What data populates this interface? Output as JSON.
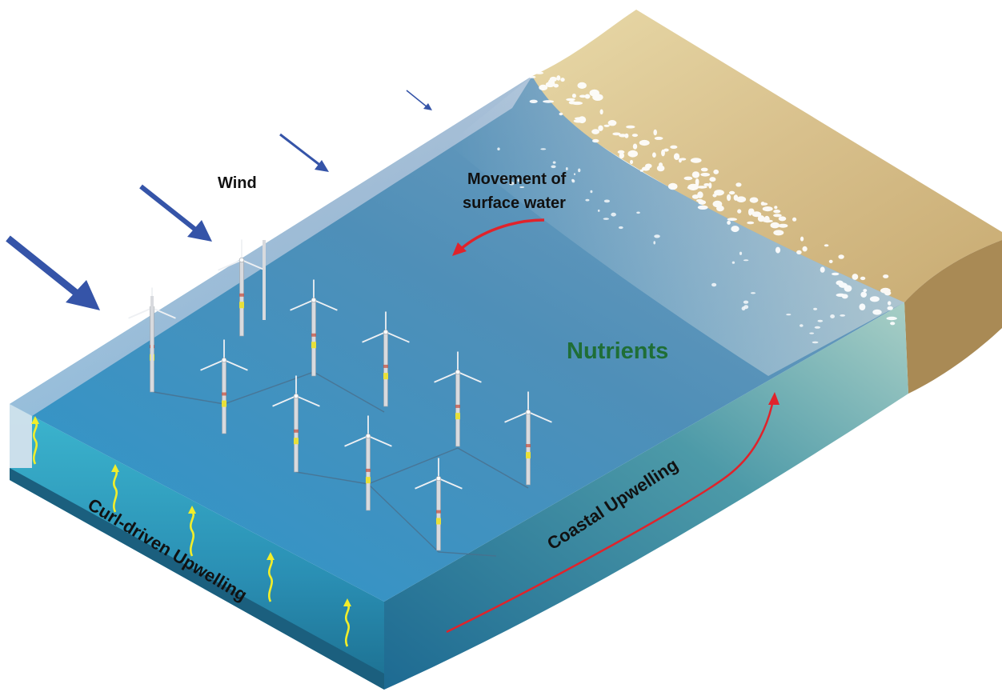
{
  "labels": {
    "wind": "Wind",
    "surface_movement_line1": "Movement of",
    "surface_movement_line2": "surface water",
    "nutrients": "Nutrients",
    "coastal_upwelling": "Coastal Upwelling",
    "curl_upwelling": "Curl-driven Upwelling"
  },
  "colors": {
    "ocean_top": "#2d8fc4",
    "ocean_side": "#1f6f97",
    "ocean_front": "#2a87b8",
    "sand": "#d8c08c",
    "sand_side": "#a98a55",
    "wind_arrow": "#3554a8",
    "upwelling_arrow": "#f2ee2a",
    "current_arrow": "#e0232b",
    "nutrients_text": "#1f6e36"
  },
  "icons": {
    "turbine": "wind-turbine-icon",
    "wind_arrow": "wind-arrow-icon",
    "upwelling_arrow": "upwelling-squiggle-icon",
    "current_arrow": "red-current-arrow-icon"
  },
  "turbine_count": 12,
  "wind_arrow_count": 4,
  "curl_upwelling_arrow_count": 5
}
